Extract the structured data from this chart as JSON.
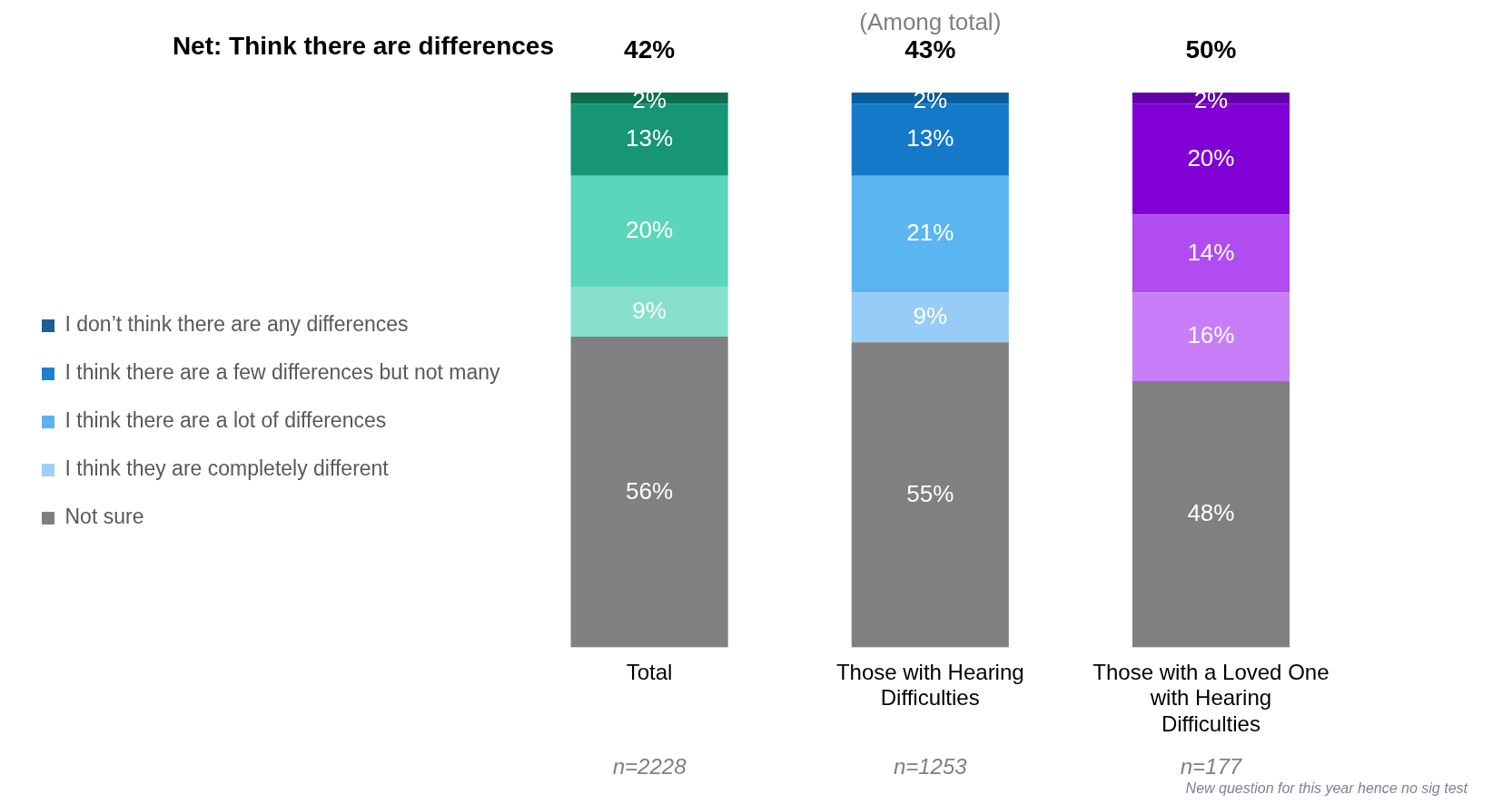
{
  "chart_data": {
    "type": "bar",
    "subtitle": "(Among total)",
    "stacked": true,
    "legend": "left",
    "grid": false,
    "categories": [
      "Total",
      "Those with Hearing Difficulties",
      "Those with a Loved One with Hearing Difficulties"
    ],
    "annotations": [
      "Net: Think there are differences",
      "42%",
      "43%",
      "50%",
      "n=2228",
      "n=1253",
      "n=177",
      "New question for this year hence no sig test"
    ],
    "series": [
      {
        "name": "Not sure",
        "color": "#808080",
        "colors": [
          "#808080",
          "#808080",
          "#808080"
        ],
        "values": [
          56,
          55,
          48
        ],
        "value_labels": [
          "56%",
          "55%",
          "48%"
        ]
      },
      {
        "name": "I think they are completely different",
        "color": "#9fd0f5",
        "colors": [
          "#86e0cb",
          "#96ccf5",
          "#c77ef8"
        ],
        "values": [
          9,
          9,
          16
        ],
        "value_labels": [
          "9%",
          "9%",
          "16%"
        ]
      },
      {
        "name": "I think there are a lot of differences",
        "color": "#5bb2ee",
        "colors": [
          "#5cd6bb",
          "#5bb5f0",
          "#b04cf2"
        ],
        "values": [
          20,
          21,
          14
        ],
        "value_labels": [
          "20%",
          "21%",
          "14%"
        ]
      },
      {
        "name": "I think there are a few differences but not many",
        "color": "#1d7fcf",
        "colors": [
          "#169677",
          "#1479c9",
          "#8000d6"
        ],
        "values": [
          13,
          13,
          20
        ],
        "value_labels": [
          "13%",
          "13%",
          "20%"
        ]
      },
      {
        "name": "I don’t think there are any differences",
        "color": "#1a5f99",
        "colors": [
          "#0e6e4e",
          "#0b5e9e",
          "#6400aa"
        ],
        "values": [
          2,
          2,
          2
        ],
        "value_labels": [
          "2%",
          "2%",
          "2%"
        ]
      }
    ]
  }
}
